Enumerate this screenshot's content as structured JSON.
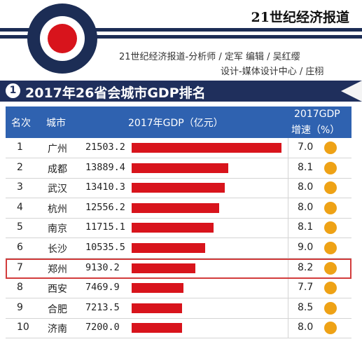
{
  "header": {
    "brand": "21世纪经济报道",
    "credit_line1": "21世纪经济报道-分析师 / 定军  编辑 / 吴红缨",
    "credit_line2": "设计-媒体设计中心 / 庄栩"
  },
  "chart_data": {
    "type": "table",
    "title_number": "1",
    "title": "2017年26省会城市GDP排名",
    "columns": {
      "rank": "名次",
      "city": "城市",
      "gdp": "2017年GDP（亿元）",
      "growth_line1": "2017GDP",
      "growth_line2": "增速（%）"
    },
    "gdp_max": 21503.2,
    "highlight_rank": "7",
    "rows": [
      {
        "rank": "1",
        "city": "广州",
        "gdp": "21503.2",
        "gdp_value": 21503.2,
        "growth": "7.0"
      },
      {
        "rank": "2",
        "city": "成都",
        "gdp": "13889.4",
        "gdp_value": 13889.4,
        "growth": "8.1"
      },
      {
        "rank": "3",
        "city": "武汉",
        "gdp": "13410.3",
        "gdp_value": 13410.3,
        "growth": "8.0"
      },
      {
        "rank": "4",
        "city": "杭州",
        "gdp": "12556.2",
        "gdp_value": 12556.2,
        "growth": "8.0"
      },
      {
        "rank": "5",
        "city": "南京",
        "gdp": "11715.1",
        "gdp_value": 11715.1,
        "growth": "8.1"
      },
      {
        "rank": "6",
        "city": "长沙",
        "gdp": "10535.5",
        "gdp_value": 10535.5,
        "growth": "9.0"
      },
      {
        "rank": "7",
        "city": "郑州",
        "gdp": "9130.2",
        "gdp_value": 9130.2,
        "growth": "8.2"
      },
      {
        "rank": "8",
        "city": "西安",
        "gdp": "7469.9",
        "gdp_value": 7469.9,
        "growth": "7.7"
      },
      {
        "rank": "9",
        "city": "合肥",
        "gdp": "7213.5",
        "gdp_value": 7213.5,
        "growth": "8.5"
      },
      {
        "rank": "10",
        "city": "济南",
        "gdp": "7200.0",
        "gdp_value": 7200.0,
        "growth": "8.0"
      }
    ]
  },
  "colors": {
    "bar": "#d8141c",
    "growth_dot": "#eea216",
    "header_bg": "#2f62b0",
    "title_bg": "#1f2f5c",
    "highlight": "#d23c3c"
  }
}
